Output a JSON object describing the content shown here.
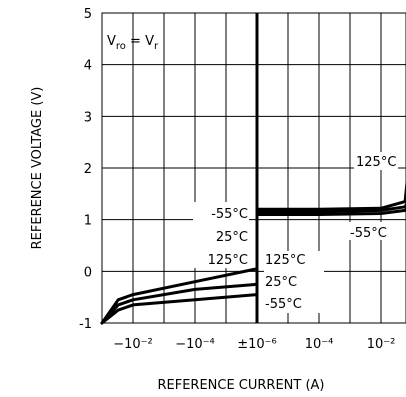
{
  "chart_data": {
    "type": "line",
    "xlabel": "REFERENCE CURRENT (A)",
    "ylabel": "REFERENCE VOLTAGE (V)",
    "x_scale": "signed log, symmetric about zero current",
    "x_tick_labels": [
      "−10⁻²",
      "−10⁻⁴",
      "±10⁻⁶",
      "10⁻⁴",
      "10⁻²"
    ],
    "y_ticks": [
      -1,
      0,
      1,
      2,
      3,
      4,
      5
    ],
    "ylim": [
      -1,
      5
    ],
    "grid": true,
    "annotation": {
      "left": "V",
      "left_sub": "ro",
      "eq": " = V",
      "right_sub": "r"
    },
    "series": [
      {
        "name": "125°C",
        "x": [
          -0.1,
          -0.03,
          -0.01,
          -0.0001,
          -1e-06,
          1e-06,
          0.0001,
          0.01,
          0.06,
          0.1
        ],
        "y": [
          -1.0,
          -0.55,
          -0.45,
          -0.2,
          0.05,
          1.2,
          1.2,
          1.22,
          1.35,
          2.7
        ]
      },
      {
        "name": "25°C",
        "x": [
          -0.1,
          -0.03,
          -0.01,
          -0.0001,
          -1e-06,
          1e-06,
          0.0001,
          0.01,
          0.06,
          0.1
        ],
        "y": [
          -1.0,
          -0.65,
          -0.55,
          -0.35,
          -0.25,
          1.15,
          1.15,
          1.18,
          1.25,
          1.5
        ]
      },
      {
        "name": "-55°C",
        "x": [
          -0.1,
          -0.03,
          -0.01,
          -0.0001,
          -1e-06,
          1e-06,
          0.0001,
          0.01,
          0.06,
          0.1
        ],
        "y": [
          -1.0,
          -0.75,
          -0.65,
          -0.55,
          -0.45,
          1.1,
          1.1,
          1.12,
          1.18,
          1.35
        ]
      }
    ],
    "labels": {
      "neg_group": [
        "-55°C",
        "25°C",
        "125°C"
      ],
      "pos_group": [
        "125°C",
        "25°C",
        "-55°C"
      ],
      "right_top": "125°C",
      "right_low": "-55°C"
    }
  }
}
